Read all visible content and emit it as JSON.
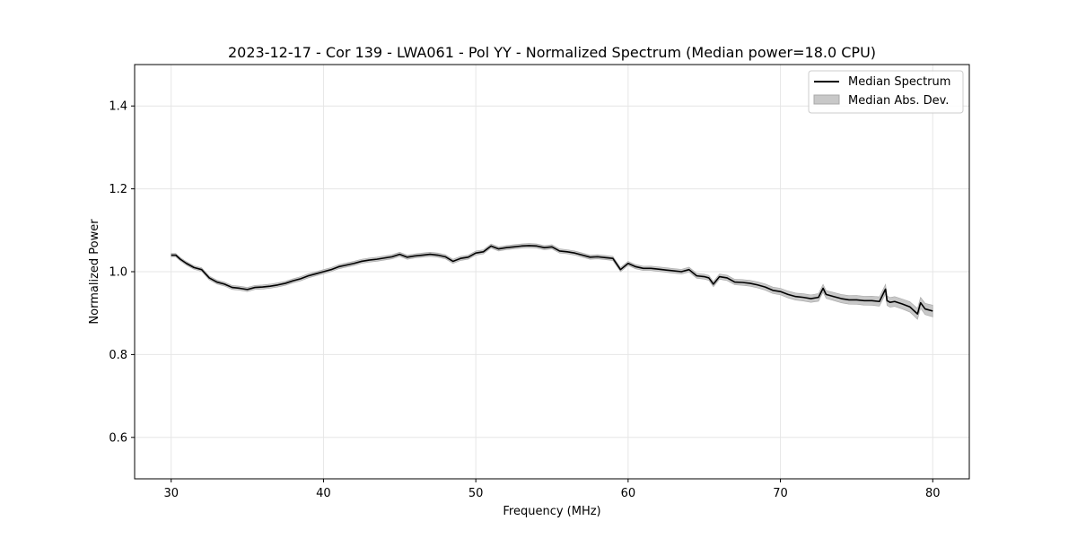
{
  "chart_data": {
    "type": "line",
    "title": "2023-12-17 - Cor 139 - LWA061 - Pol YY - Normalized Spectrum (Median power=18.0 CPU)",
    "xlabel": "Frequency (MHz)",
    "ylabel": "Normalized Power",
    "xlim": [
      27.6,
      82.4
    ],
    "ylim": [
      0.5,
      1.5
    ],
    "xticks": [
      30,
      40,
      50,
      60,
      70,
      80
    ],
    "yticks": [
      0.6,
      0.8,
      1.0,
      1.2,
      1.4
    ],
    "xtick_labels": [
      "30",
      "40",
      "50",
      "60",
      "70",
      "80"
    ],
    "ytick_labels": [
      "0.6",
      "0.8",
      "1.0",
      "1.2",
      "1.4"
    ],
    "grid": true,
    "legend_position": "top-right",
    "legend": [
      "Median Spectrum",
      "Median Abs. Dev."
    ],
    "colors": {
      "line": "#000000",
      "band": "#c8c8c8",
      "band_edge": "#a8a8a8",
      "grid": "#e6e6e6"
    },
    "series": [
      {
        "name": "Median Spectrum",
        "x": [
          30,
          30.3,
          30.6,
          31,
          31.5,
          32,
          32.5,
          33,
          33.5,
          34,
          34.5,
          35,
          35.5,
          36,
          36.5,
          37,
          37.5,
          38,
          38.5,
          39,
          39.5,
          40,
          40.5,
          41,
          41.5,
          42,
          42.5,
          43,
          43.5,
          44,
          44.5,
          45,
          45.5,
          46,
          46.5,
          47,
          47.5,
          48,
          48.5,
          49,
          49.5,
          50,
          50.5,
          51,
          51.5,
          52,
          52.5,
          53,
          53.5,
          54,
          54.5,
          55,
          55.5,
          56,
          56.5,
          57,
          57.5,
          58,
          58.5,
          59,
          59.5,
          60,
          60.5,
          61,
          61.5,
          62,
          62.5,
          63,
          63.5,
          64,
          64.5,
          65,
          65.3,
          65.6,
          66,
          66.5,
          67,
          67.5,
          68,
          68.5,
          69,
          69.5,
          70,
          70.5,
          71,
          71.5,
          72,
          72.5,
          72.8,
          73,
          73.5,
          74,
          74.5,
          75,
          75.5,
          76,
          76.5,
          76.9,
          77,
          77.2,
          77.5,
          78,
          78.5,
          79,
          79.2,
          79.5,
          80
        ],
        "values": [
          1.04,
          1.04,
          1.03,
          1.02,
          1.01,
          1.005,
          0.985,
          0.975,
          0.97,
          0.962,
          0.96,
          0.957,
          0.962,
          0.963,
          0.965,
          0.968,
          0.972,
          0.978,
          0.983,
          0.99,
          0.995,
          1.0,
          1.005,
          1.012,
          1.016,
          1.02,
          1.025,
          1.028,
          1.03,
          1.033,
          1.036,
          1.042,
          1.035,
          1.038,
          1.04,
          1.042,
          1.04,
          1.036,
          1.025,
          1.032,
          1.035,
          1.045,
          1.048,
          1.062,
          1.055,
          1.058,
          1.06,
          1.062,
          1.063,
          1.062,
          1.058,
          1.06,
          1.05,
          1.048,
          1.045,
          1.04,
          1.035,
          1.036,
          1.034,
          1.032,
          1.005,
          1.02,
          1.012,
          1.008,
          1.008,
          1.006,
          1.004,
          1.002,
          1.0,
          1.005,
          0.99,
          0.988,
          0.985,
          0.97,
          0.988,
          0.985,
          0.975,
          0.974,
          0.972,
          0.968,
          0.963,
          0.955,
          0.952,
          0.945,
          0.94,
          0.938,
          0.935,
          0.938,
          0.96,
          0.945,
          0.94,
          0.935,
          0.932,
          0.932,
          0.93,
          0.93,
          0.928,
          0.958,
          0.93,
          0.926,
          0.928,
          0.922,
          0.915,
          0.898,
          0.925,
          0.91,
          0.905
        ]
      },
      {
        "name": "Median Abs. Dev.",
        "x": [
          30,
          35,
          40,
          45,
          50,
          55,
          60,
          65,
          68,
          70,
          72,
          74,
          76,
          78,
          80
        ],
        "values": [
          0.004,
          0.005,
          0.005,
          0.005,
          0.005,
          0.005,
          0.005,
          0.006,
          0.007,
          0.008,
          0.009,
          0.01,
          0.011,
          0.012,
          0.014
        ]
      }
    ]
  }
}
